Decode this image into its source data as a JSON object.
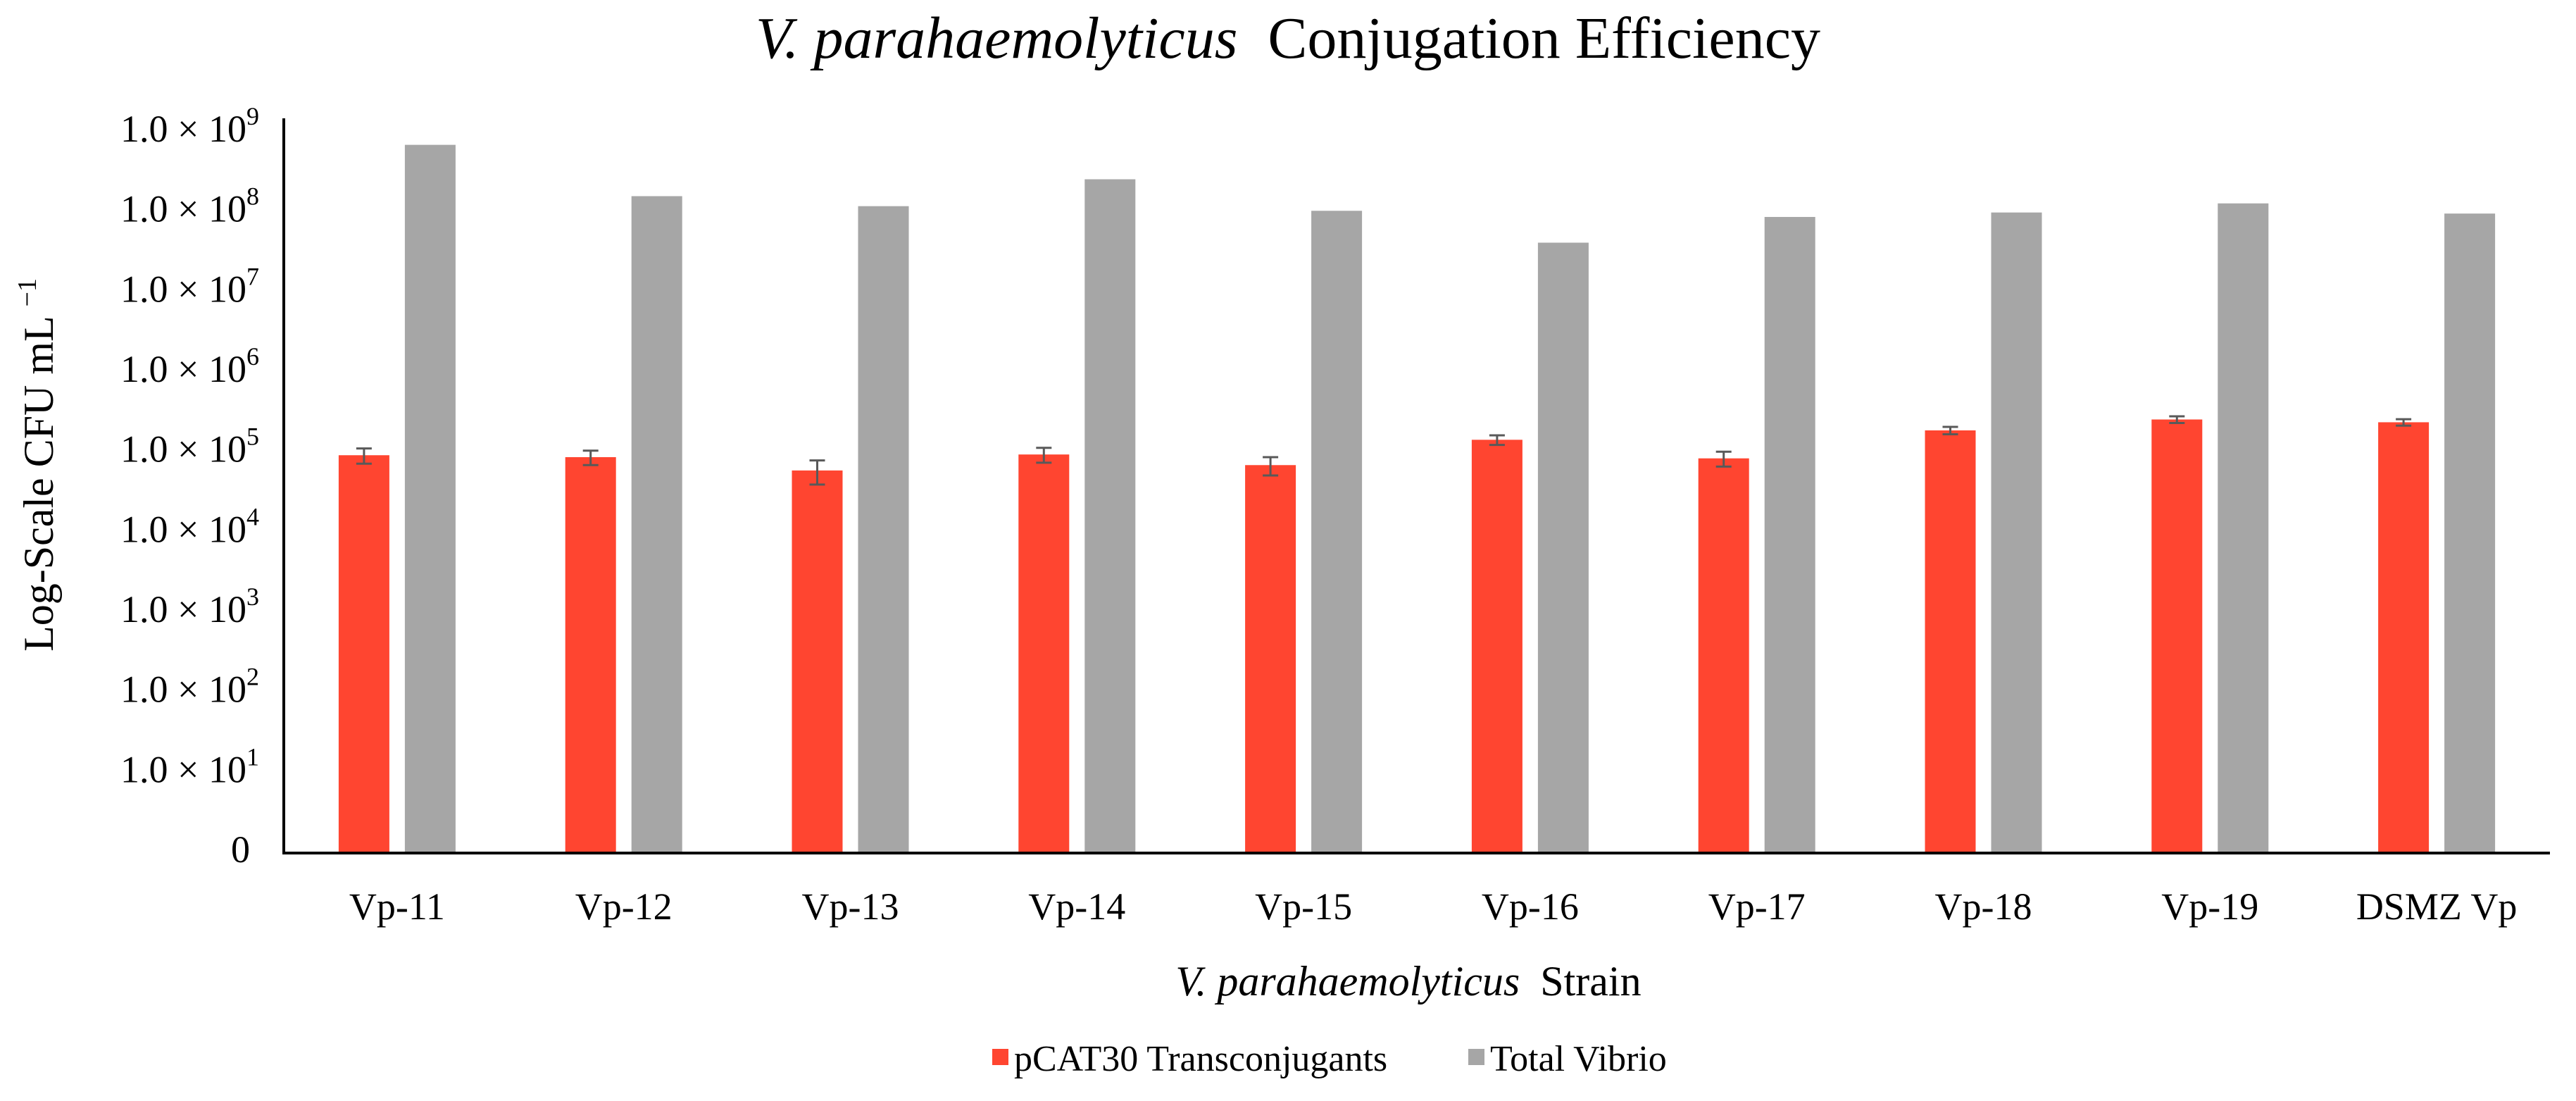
{
  "chart_data": {
    "type": "bar",
    "title": {
      "italic": "V. parahaemolyticus",
      "rest": "Conjugation Efficiency"
    },
    "xlabel": {
      "italic": "V. parahaemolyticus",
      "rest": "Strain"
    },
    "ylabel": {
      "main": "Log-Scale CFU mL",
      "superscript": "−1"
    },
    "y_scale": "log",
    "ylim": [
      1,
      1000000000
    ],
    "y_ticks": [
      {
        "mant": "0",
        "exp": ""
      },
      {
        "mant": "1.0 × 10",
        "exp": "1"
      },
      {
        "mant": "1.0 × 10",
        "exp": "2"
      },
      {
        "mant": "1.0 × 10",
        "exp": "3"
      },
      {
        "mant": "1.0 × 10",
        "exp": "4"
      },
      {
        "mant": "1.0 × 10",
        "exp": "5"
      },
      {
        "mant": "1.0 × 10",
        "exp": "6"
      },
      {
        "mant": "1.0 × 10",
        "exp": "7"
      },
      {
        "mant": "1.0 × 10",
        "exp": "8"
      },
      {
        "mant": "1.0 × 10",
        "exp": "9"
      }
    ],
    "categories": [
      "Vp-11",
      "Vp-12",
      "Vp-13",
      "Vp-14",
      "Vp-15",
      "Vp-16",
      "Vp-17",
      "Vp-18",
      "Vp-19",
      "DSMZ Vp"
    ],
    "series": [
      {
        "name": "pCAT30 Transconjugants",
        "color": "#FF4530",
        "values": [
          93000,
          88000,
          60000,
          95000,
          70000,
          145000,
          85000,
          190000,
          260000,
          240000
        ],
        "error": [
          20000,
          18000,
          20000,
          20000,
          18000,
          20000,
          18000,
          20000,
          25000,
          22000
        ]
      },
      {
        "name": "Total Vibrio",
        "color": "#A6A6A6",
        "values": [
          700000000,
          160000000,
          120000000,
          260000000,
          105000000,
          42000000,
          88000000,
          100000000,
          130000000,
          97000000
        ]
      }
    ],
    "legend_position": "bottom",
    "grid": false
  }
}
